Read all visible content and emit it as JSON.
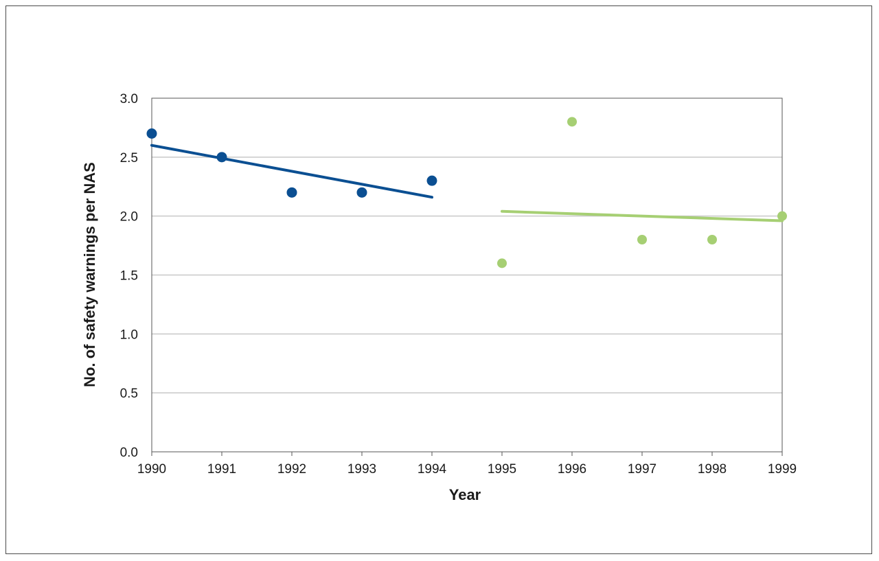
{
  "chart_data": {
    "type": "scatter",
    "title": "",
    "xlabel": "Year",
    "ylabel": "No. of safety warnings per NAS",
    "xlim": [
      1990,
      1999
    ],
    "ylim": [
      0,
      3.0
    ],
    "x_ticks": [
      "1990",
      "1991",
      "1992",
      "1993",
      "1994",
      "1995",
      "1996",
      "1997",
      "1998",
      "1999"
    ],
    "y_ticks": [
      "0.0",
      "0.5",
      "1.0",
      "1.5",
      "2.0",
      "2.5",
      "3.0"
    ],
    "grid": "horizontal",
    "legend": "none",
    "series": [
      {
        "color": "#0b4f92",
        "points": [
          {
            "x": 1990,
            "y": 2.7
          },
          {
            "x": 1991,
            "y": 2.5
          },
          {
            "x": 1992,
            "y": 2.2
          },
          {
            "x": 1993,
            "y": 2.2
          },
          {
            "x": 1994,
            "y": 2.3
          }
        ],
        "trendline": {
          "x": [
            1990,
            1994
          ],
          "y": [
            2.6,
            2.16
          ]
        }
      },
      {
        "color": "#a6cf73",
        "points": [
          {
            "x": 1995,
            "y": 1.6
          },
          {
            "x": 1996,
            "y": 2.8
          },
          {
            "x": 1997,
            "y": 1.8
          },
          {
            "x": 1998,
            "y": 1.8
          },
          {
            "x": 1999,
            "y": 2.0
          }
        ],
        "trendline": {
          "x": [
            1995,
            1999
          ],
          "y": [
            2.04,
            1.96
          ]
        }
      }
    ]
  }
}
